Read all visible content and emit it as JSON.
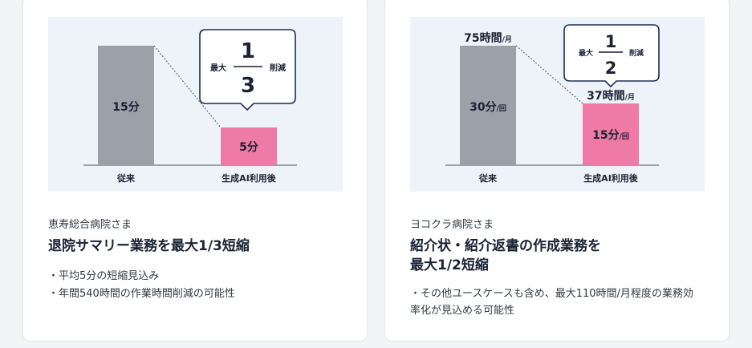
{
  "cards": [
    {
      "hospital": "恵寿総合病院さま",
      "heading_lines": [
        "退院サマリー業務を最大1/3短縮"
      ],
      "bullets": [
        "平均5分の短縮見込み",
        "年間540時間の作業時間削減の可能性"
      ]
    },
    {
      "hospital": "ヨコクラ病院さま",
      "heading_lines": [
        "紹介状・紹介返書の作成業務を",
        "最大1/2短縮"
      ],
      "bullets": [
        "その他ユースケースも含め、最大110時間/月程度の業務効率化が見込める可能性"
      ]
    }
  ],
  "chart_data": [
    {
      "type": "bar",
      "categories": [
        "従来",
        "生成AI利用後"
      ],
      "values": [
        15,
        5
      ],
      "value_labels": [
        "15分",
        "5分"
      ],
      "bar_colors": [
        "#9ca0a8",
        "#f07aa6"
      ],
      "callout": {
        "prefix": "最大",
        "numerator": "1",
        "denominator": "3",
        "suffix": "削減"
      }
    },
    {
      "type": "bar",
      "categories": [
        "従来",
        "生成AI利用後"
      ],
      "values": [
        30,
        15
      ],
      "value_labels": [
        {
          "main": "30分",
          "unit": "/回"
        },
        {
          "main": "15分",
          "unit": "/回"
        }
      ],
      "top_labels": [
        {
          "main": "75時間",
          "unit": "/月"
        },
        {
          "main": "37時間",
          "unit": "/月"
        }
      ],
      "bar_colors": [
        "#9ca0a8",
        "#f07aa6"
      ],
      "callout": {
        "prefix": "最大",
        "numerator": "1",
        "denominator": "2",
        "suffix": "削減"
      }
    }
  ],
  "colors": {
    "chart_bg": "#eef2f9",
    "bar_gray": "#9ca0a8",
    "bar_pink": "#f07aa6",
    "callout_border": "#1e2d52",
    "text_dark": "#1a2233"
  }
}
